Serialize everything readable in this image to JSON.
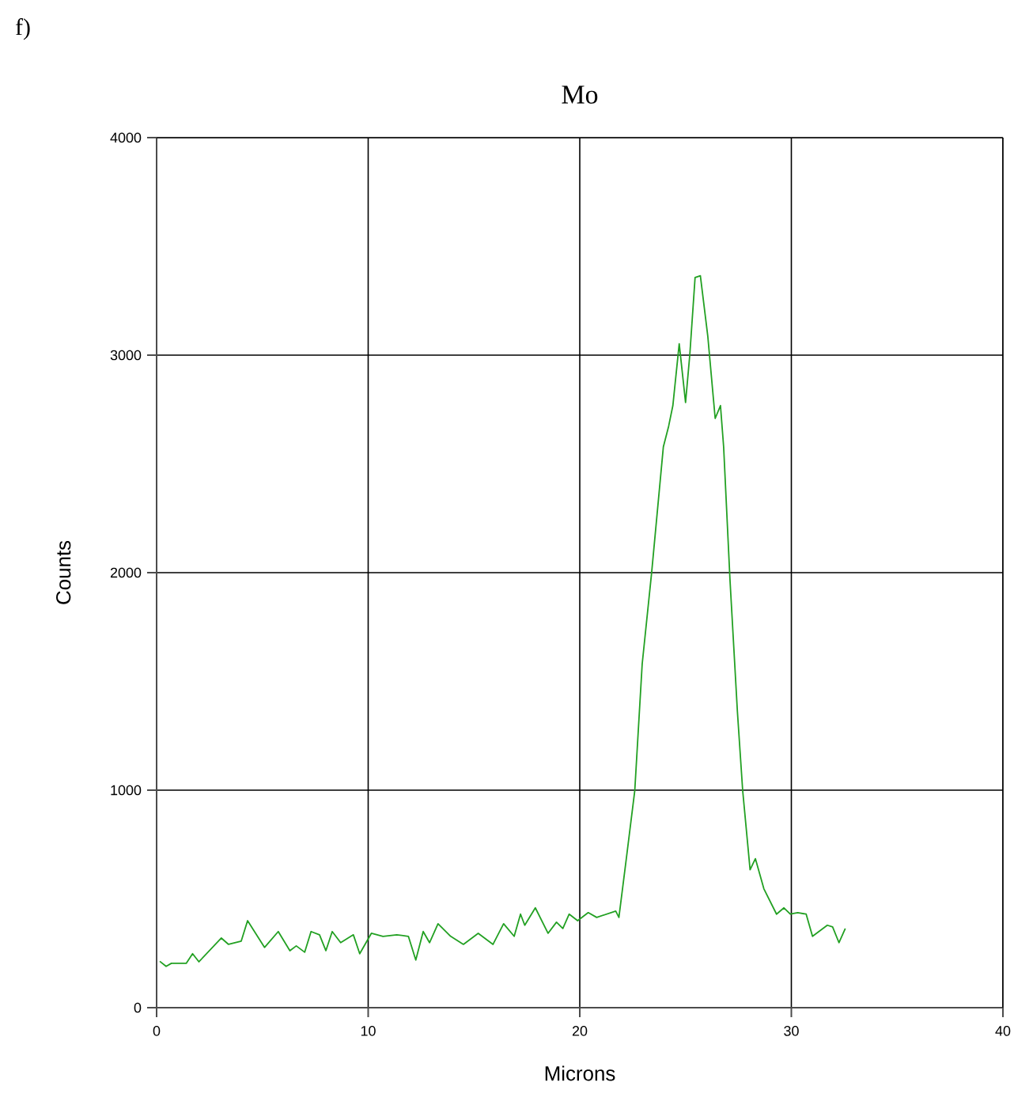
{
  "chart_data": {
    "type": "line",
    "title": "Mo",
    "xlabel": "Microns",
    "ylabel": "Counts",
    "annotations": [
      "f)"
    ],
    "xlim": [
      0,
      40
    ],
    "ylim": [
      0,
      4000
    ],
    "xticks": [
      0,
      10,
      20,
      30,
      40
    ],
    "yticks": [
      0,
      1000,
      2000,
      3000,
      4000
    ],
    "grid": true,
    "marker": "none",
    "line_style": "solid",
    "series": [
      {
        "color": "#22a022",
        "x": [
          0.15,
          0.45,
          0.7,
          1.4,
          1.7,
          2.0,
          3.06,
          3.4,
          4.0,
          4.3,
          5.1,
          5.75,
          6.3,
          6.6,
          7.0,
          7.3,
          7.7,
          8.0,
          8.3,
          8.7,
          9.3,
          9.6,
          10.15,
          10.7,
          11.35,
          11.9,
          12.25,
          12.6,
          12.9,
          13.3,
          13.9,
          14.5,
          15.2,
          15.9,
          16.4,
          16.9,
          17.2,
          17.4,
          17.9,
          18.5,
          18.9,
          19.2,
          19.5,
          19.9,
          20.4,
          20.8,
          21.7,
          21.85,
          22.2,
          22.6,
          22.95,
          23.4,
          23.95,
          24.2,
          24.4,
          24.7,
          25.0,
          25.2,
          25.45,
          25.7,
          26.05,
          26.4,
          26.65,
          26.8,
          27.1,
          27.45,
          27.7,
          28.05,
          28.3,
          28.7,
          29.3,
          29.65,
          29.95,
          30.3,
          30.7,
          31.0,
          31.7,
          31.95,
          32.25,
          32.55
        ],
        "values": [
          213,
          190,
          204,
          204,
          248,
          211,
          320,
          291,
          306,
          400,
          277,
          350,
          262,
          284,
          255,
          350,
          335,
          262,
          350,
          299,
          335,
          248,
          342,
          328,
          335,
          328,
          219,
          350,
          299,
          386,
          328,
          291,
          342,
          291,
          386,
          328,
          430,
          379,
          459,
          342,
          393,
          364,
          430,
          400,
          437,
          415,
          444,
          415,
          685,
          998,
          1580,
          2003,
          2578,
          2673,
          2768,
          3052,
          2782,
          3001,
          3357,
          3365,
          3088,
          2709,
          2768,
          2578,
          1967,
          1362,
          998,
          634,
          685,
          547,
          430,
          459,
          430,
          437,
          430,
          328,
          379,
          371,
          299,
          364
        ]
      }
    ]
  }
}
